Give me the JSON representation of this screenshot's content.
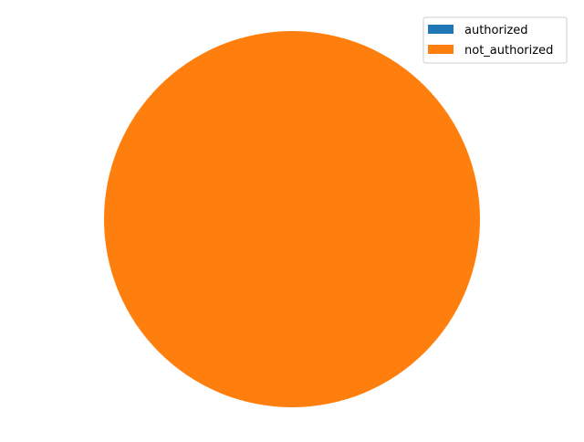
{
  "chart_data": {
    "type": "pie",
    "title": "",
    "categories": [
      "authorized",
      "not_authorized"
    ],
    "values": [
      0,
      100
    ],
    "colors": [
      "#1f77b4",
      "#ff7f0e"
    ],
    "legend": {
      "placement": "top-right",
      "entries": [
        "authorized",
        "not_authorized"
      ]
    }
  }
}
